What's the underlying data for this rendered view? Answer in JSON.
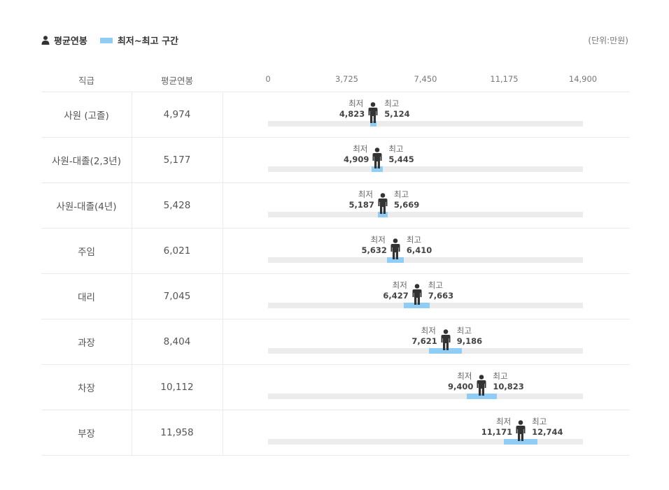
{
  "legend": {
    "avg_label": "평균연봉",
    "range_label": "최저~최고 구간",
    "unit": "(단위:만원)"
  },
  "header": {
    "rank": "직급",
    "avg": "평균연봉"
  },
  "labels": {
    "min": "최저",
    "max": "최고"
  },
  "colors": {
    "range": "#90cdf4",
    "track": "#ececec",
    "person": "#333333"
  },
  "chart_data": {
    "type": "bar",
    "orientation": "horizontal-range",
    "xlim": [
      0,
      14900
    ],
    "ticks": [
      "0",
      "3,725",
      "7,450",
      "11,175",
      "14,900"
    ],
    "tick_values": [
      0,
      3725,
      7450,
      11175,
      14900
    ],
    "rows": [
      {
        "rank": "사원 (고졸)",
        "avg": 4974,
        "avg_text": "4,974",
        "min": 4823,
        "min_text": "4,823",
        "max": 5124,
        "max_text": "5,124"
      },
      {
        "rank": "사원-대졸(2,3년)",
        "avg": 5177,
        "avg_text": "5,177",
        "min": 4909,
        "min_text": "4,909",
        "max": 5445,
        "max_text": "5,445"
      },
      {
        "rank": "사원-대졸(4년)",
        "avg": 5428,
        "avg_text": "5,428",
        "min": 5187,
        "min_text": "5,187",
        "max": 5669,
        "max_text": "5,669"
      },
      {
        "rank": "주임",
        "avg": 6021,
        "avg_text": "6,021",
        "min": 5632,
        "min_text": "5,632",
        "max": 6410,
        "max_text": "6,410"
      },
      {
        "rank": "대리",
        "avg": 7045,
        "avg_text": "7,045",
        "min": 6427,
        "min_text": "6,427",
        "max": 7663,
        "max_text": "7,663"
      },
      {
        "rank": "과장",
        "avg": 8404,
        "avg_text": "8,404",
        "min": 7621,
        "min_text": "7,621",
        "max": 9186,
        "max_text": "9,186"
      },
      {
        "rank": "차장",
        "avg": 10112,
        "avg_text": "10,112",
        "min": 9400,
        "min_text": "9,400",
        "max": 10823,
        "max_text": "10,823"
      },
      {
        "rank": "부장",
        "avg": 11958,
        "avg_text": "11,958",
        "min": 11171,
        "min_text": "11,171",
        "max": 12744,
        "max_text": "12,744"
      }
    ]
  }
}
